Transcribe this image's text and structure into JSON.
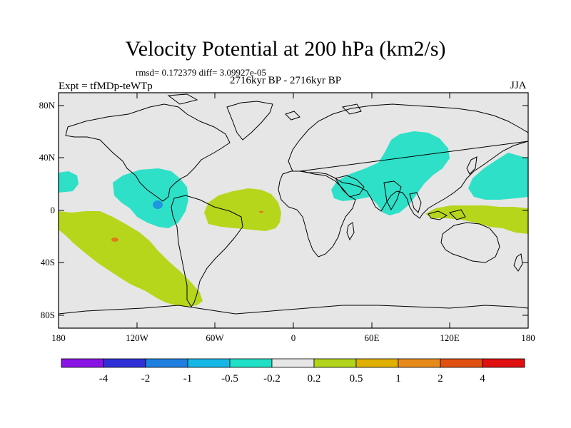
{
  "title": "Velocity Potential at 200 hPa (km2/s)",
  "stats": "rmsd= 0.172379 diff= 3.09927e-05",
  "experiment": "Expt = tfMDp-teWTp",
  "period": "2716kyr BP - 2716kyr BP",
  "season": "JJA",
  "lat_ticks": [
    "80N",
    "40N",
    "0",
    "40S",
    "80S"
  ],
  "lon_ticks": [
    "180",
    "120W",
    "60W",
    "0",
    "60E",
    "120E",
    "180"
  ],
  "colorbar": {
    "labels": [
      "-4",
      "-2",
      "-1",
      "-0.5",
      "-0.2",
      "0.2",
      "0.5",
      "1",
      "2",
      "4"
    ],
    "colors": [
      "#8a14e6",
      "#2f2fd8",
      "#1f7fe0",
      "#15b7e6",
      "#1ee0c6",
      "#e6e6e6",
      "#b2d41a",
      "#e0b000",
      "#e88a1a",
      "#e05010",
      "#e01010"
    ]
  },
  "map_colors": {
    "background": "#e6e6e6",
    "neg_02_05": "#2ee0c8",
    "neg_1_2": "#1f96e0",
    "pos_02_05": "#b6d61c",
    "pos_1_2": "#e07a1a"
  }
}
